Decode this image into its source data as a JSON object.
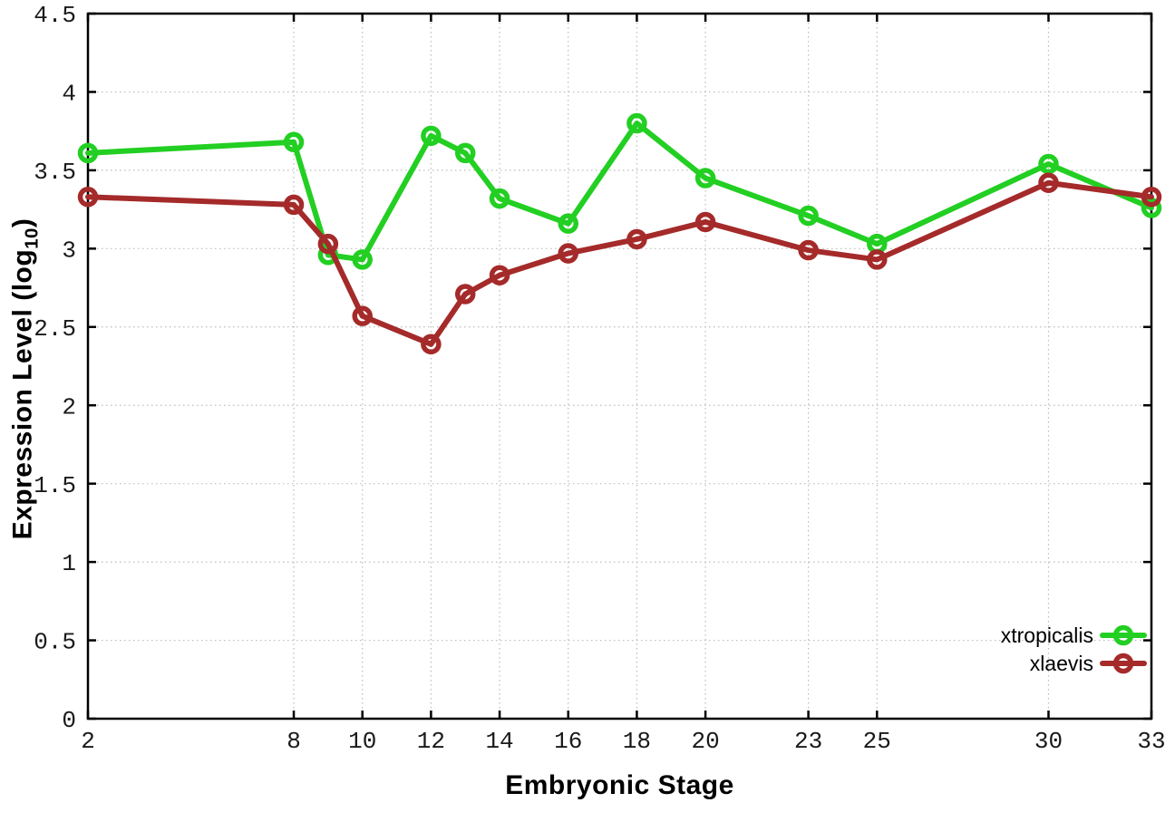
{
  "figure": {
    "background": "#ffffff",
    "axis_color": "#000000",
    "grid_color": "#bcbcbc",
    "tick_label_color": "#1a1a1a"
  },
  "labels": {
    "x_title": "Embryonic Stage",
    "y_title_prefix": "Expression Level (log",
    "y_title_sub": "10",
    "y_title_suffix": ")"
  },
  "chart_data": {
    "type": "line",
    "title": "",
    "xlabel": "Embryonic Stage",
    "ylabel": "Expression Level (log10)",
    "x": [
      2,
      8,
      9,
      10,
      12,
      13,
      14,
      16,
      18,
      20,
      23,
      25,
      30,
      33
    ],
    "series": [
      {
        "name": "xtropicalis",
        "color": "#22cf22",
        "values": [
          3.61,
          3.68,
          2.96,
          2.93,
          3.72,
          3.61,
          3.32,
          3.16,
          3.8,
          3.45,
          3.21,
          3.03,
          3.54,
          3.26
        ]
      },
      {
        "name": "xlaevis",
        "color": "#a52a2a",
        "values": [
          3.33,
          3.28,
          3.03,
          2.57,
          2.39,
          2.71,
          2.83,
          2.97,
          3.06,
          3.17,
          2.99,
          2.93,
          3.42,
          3.33
        ]
      }
    ],
    "xticks": [
      2,
      8,
      10,
      12,
      14,
      16,
      18,
      20,
      23,
      25,
      30,
      33
    ],
    "yticks": [
      0,
      0.5,
      1,
      1.5,
      2,
      2.5,
      3,
      3.5,
      4,
      4.5
    ],
    "xlim": [
      2,
      33
    ],
    "ylim": [
      0,
      4.5
    ],
    "grid": true,
    "legend_position": "bottom-right",
    "marker": "open-circle"
  }
}
